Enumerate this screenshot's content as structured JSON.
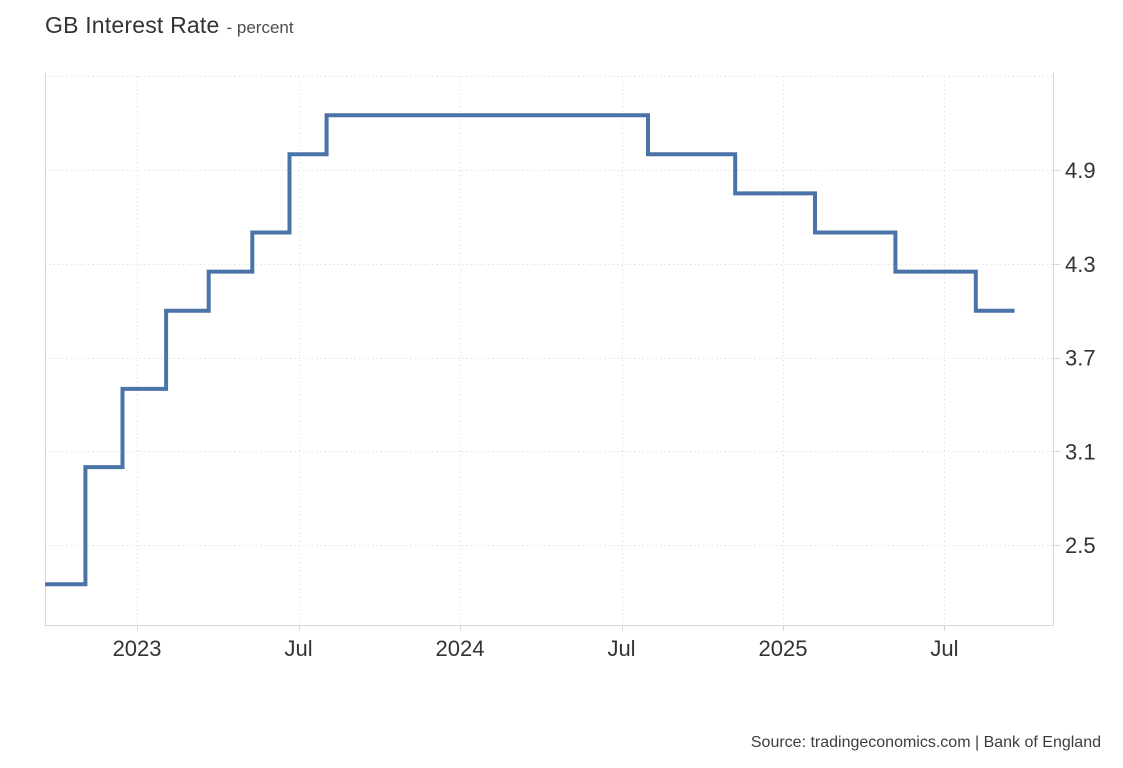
{
  "header": {
    "title": "GB Interest Rate",
    "subtitle": "- percent"
  },
  "footer": {
    "source": "Source: tradingeconomics.com | Bank of England"
  },
  "chart_data": {
    "type": "line",
    "subtype": "step",
    "title": "GB Interest Rate",
    "ylabel": "percent",
    "xlabel": "",
    "legend": "none",
    "grid": "dotted",
    "line_color": "#4a74a8",
    "grid_color": "#e1e1e1",
    "axis_line_color": "#d8d8d8",
    "label_color": "#333333",
    "x_range": [
      2022.715,
      2025.836
    ],
    "y_range": [
      1.99,
      5.52
    ],
    "x_ticks": [
      {
        "t": 2023.0,
        "label": "2023"
      },
      {
        "t": 2023.5,
        "label": "Jul"
      },
      {
        "t": 2024.0,
        "label": "2024"
      },
      {
        "t": 2024.5,
        "label": "Jul"
      },
      {
        "t": 2025.0,
        "label": "2025"
      },
      {
        "t": 2025.5,
        "label": "Jul"
      }
    ],
    "y_ticks": [
      {
        "v": 5.5,
        "label": ""
      },
      {
        "v": 4.9,
        "label": "4.9"
      },
      {
        "v": 4.3,
        "label": "4.3"
      },
      {
        "v": 3.7,
        "label": "3.7"
      },
      {
        "v": 3.1,
        "label": "3.1"
      },
      {
        "v": 2.5,
        "label": "2.5"
      }
    ],
    "points": [
      {
        "date": "Sep 2022",
        "t": 2022.715,
        "value": 2.25
      },
      {
        "date": "Nov 2022",
        "t": 2022.84,
        "value": 3.0
      },
      {
        "date": "Dec 2022",
        "t": 2022.955,
        "value": 3.5
      },
      {
        "date": "Feb 2023",
        "t": 2023.09,
        "value": 4.0
      },
      {
        "date": "Mar 2023",
        "t": 2023.222,
        "value": 4.25
      },
      {
        "date": "May 2023",
        "t": 2023.357,
        "value": 4.5
      },
      {
        "date": "Jun 2023",
        "t": 2023.472,
        "value": 5.0
      },
      {
        "date": "Aug 2023",
        "t": 2023.587,
        "value": 5.25
      },
      {
        "date": "Aug 2024",
        "t": 2024.582,
        "value": 5.0
      },
      {
        "date": "Nov 2024",
        "t": 2024.852,
        "value": 4.75
      },
      {
        "date": "Feb 2025",
        "t": 2025.099,
        "value": 4.5
      },
      {
        "date": "May 2025",
        "t": 2025.348,
        "value": 4.25
      },
      {
        "date": "Aug 2025",
        "t": 2025.597,
        "value": 4.0
      },
      {
        "date": "Sep 2025",
        "t": 2025.717,
        "value": 4.0
      }
    ]
  }
}
